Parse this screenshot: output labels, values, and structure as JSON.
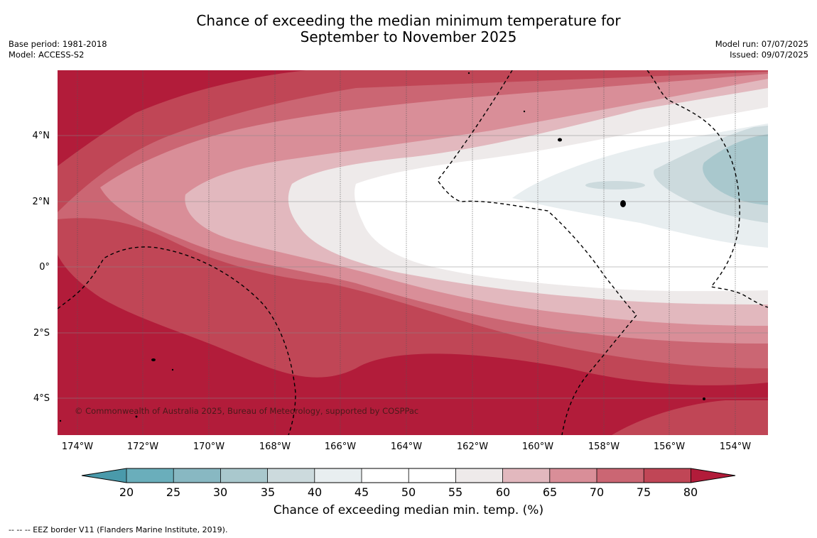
{
  "title_line1": "Chance of exceeding the median minimum temperature for",
  "title_line2": "September to November 2025",
  "base_period": "Base period: 1981-2018",
  "model": "Model: ACCESS-S2",
  "model_run": "Model run: 07/07/2025",
  "issued": "Issued: 09/07/2025",
  "credit": "© Commonwealth of Australia 2025, Bureau of Meteorology, supported by COSPPac",
  "lat_labels": [
    "4°N",
    "2°N",
    "0°",
    "2°S",
    "4°S"
  ],
  "lon_labels": [
    "174°W",
    "172°W",
    "170°W",
    "168°W",
    "166°W",
    "164°W",
    "162°W",
    "160°W",
    "158°W",
    "156°W",
    "154°W"
  ],
  "colorbar": {
    "ticks": [
      "20",
      "25",
      "30",
      "35",
      "40",
      "45",
      "50",
      "55",
      "60",
      "65",
      "70",
      "75",
      "80"
    ],
    "label": "Chance of exceeding median min. temp. (%)",
    "colors": {
      "below_20": "#4a9aab",
      "20_25": "#6aaebb",
      "25_30": "#88b8c2",
      "30_35": "#a9c8cd",
      "35_40": "#ccdadd",
      "40_45": "#e8eef0",
      "45_50": "#ffffff",
      "50_55": "#ffffff",
      "55_60": "#eeeaea",
      "60_65": "#e2b8be",
      "65_70": "#d98e98",
      "70_75": "#cb6673",
      "75_80": "#c04656",
      "above_80": "#b21c3a"
    }
  },
  "footnote": "--  --  -- EEZ border V11 (Flanders Marine Institute, 2019)."
}
